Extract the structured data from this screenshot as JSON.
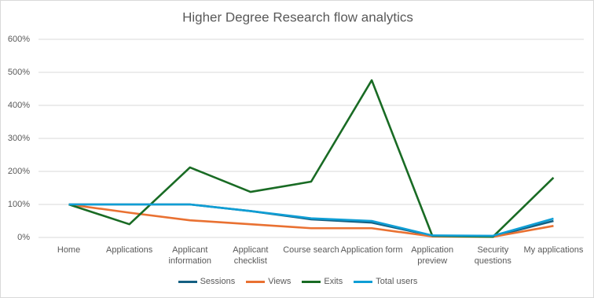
{
  "chart_data": {
    "type": "line",
    "title": "Higher Degree Research flow analytics",
    "categories": [
      "Home",
      "Applications",
      "Applicant information",
      "Applicant checklist",
      "Course search",
      "Application form",
      "Application preview",
      "Security questions",
      "My applications"
    ],
    "series": [
      {
        "name": "Sessions",
        "color": "#156082",
        "values": [
          100,
          100,
          100,
          80,
          55,
          45,
          5,
          3,
          50
        ]
      },
      {
        "name": "Views",
        "color": "#e97132",
        "values": [
          100,
          75,
          52,
          40,
          28,
          28,
          3,
          2,
          35
        ]
      },
      {
        "name": "Exits",
        "color": "#196b24",
        "values": [
          100,
          40,
          212,
          138,
          169,
          476,
          5,
          2,
          181
        ]
      },
      {
        "name": "Total users",
        "color": "#0f9ed5",
        "values": [
          100,
          100,
          100,
          80,
          58,
          50,
          6,
          5,
          57
        ]
      }
    ],
    "ylim": [
      0,
      600
    ],
    "yticks": [
      {
        "value": 0,
        "label": "0%"
      },
      {
        "value": 100,
        "label": "100%"
      },
      {
        "value": 200,
        "label": "200%"
      },
      {
        "value": 300,
        "label": "300%"
      },
      {
        "value": 400,
        "label": "400%"
      },
      {
        "value": 500,
        "label": "500%"
      },
      {
        "value": 600,
        "label": "600%"
      }
    ],
    "grid": true,
    "legend": "bottom"
  }
}
